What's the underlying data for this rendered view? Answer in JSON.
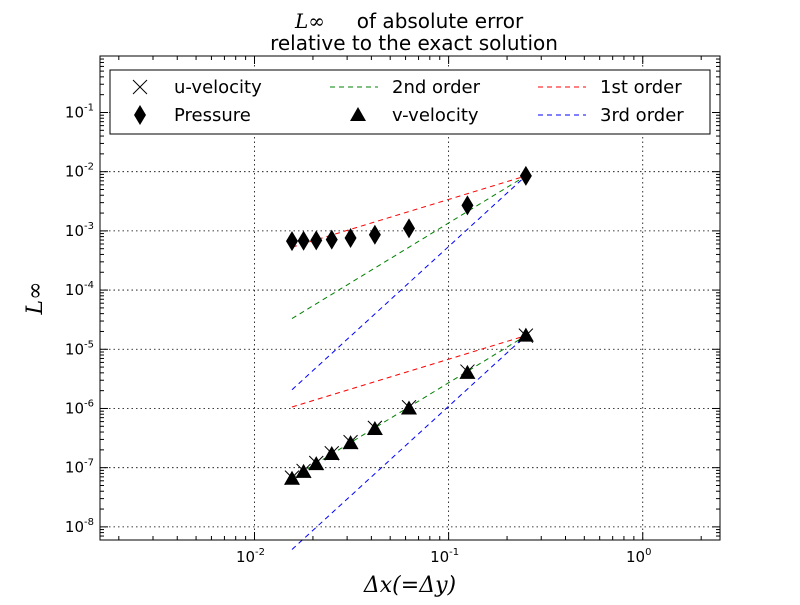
{
  "chart_data": {
    "type": "scatter",
    "title_math": "L∞",
    "title_line1": "of absolute error",
    "title_line2": "relative to the exact solution",
    "xlabel": "Δx(=Δy)",
    "ylabel": "L∞",
    "xscale": "log",
    "yscale": "log",
    "xlim": [
      0.0016,
      2.5
    ],
    "ylim": [
      6e-09,
      0.9
    ],
    "grid": true,
    "legend_position": "top",
    "xticks": [
      {
        "base": "10",
        "exp": "-2",
        "value": 0.01
      },
      {
        "base": "10",
        "exp": "-1",
        "value": 0.1
      },
      {
        "base": "10",
        "exp": "0",
        "value": 1
      }
    ],
    "yticks": [
      {
        "base": "10",
        "exp": "-8",
        "value": 1e-08
      },
      {
        "base": "10",
        "exp": "-7",
        "value": 1e-07
      },
      {
        "base": "10",
        "exp": "-6",
        "value": 1e-06
      },
      {
        "base": "10",
        "exp": "-5",
        "value": 1e-05
      },
      {
        "base": "10",
        "exp": "-4",
        "value": 0.0001
      },
      {
        "base": "10",
        "exp": "-3",
        "value": 0.001
      },
      {
        "base": "10",
        "exp": "-2",
        "value": 0.01
      },
      {
        "base": "10",
        "exp": "-1",
        "value": 0.1
      }
    ],
    "series": [
      {
        "name": "u-velocity",
        "marker": "x",
        "color": "#000000",
        "x": [
          0.25,
          0.125,
          0.0625,
          0.0417,
          0.03125,
          0.025,
          0.0208,
          0.0179,
          0.0156
        ],
        "y": [
          1.7e-05,
          4.2e-06,
          1.05e-06,
          4.7e-07,
          2.7e-07,
          1.75e-07,
          1.2e-07,
          8.8e-08,
          6.8e-08
        ]
      },
      {
        "name": "v-velocity",
        "marker": "triangle",
        "color": "#000000",
        "x": [
          0.25,
          0.125,
          0.0625,
          0.0417,
          0.03125,
          0.025,
          0.0208,
          0.0179,
          0.0156
        ],
        "y": [
          1.7e-05,
          4e-06,
          1e-06,
          4.5e-07,
          2.6e-07,
          1.7e-07,
          1.15e-07,
          8.5e-08,
          6.5e-08
        ]
      },
      {
        "name": "Pressure",
        "marker": "diamond",
        "color": "#000000",
        "x": [
          0.25,
          0.125,
          0.0625,
          0.0417,
          0.03125,
          0.025,
          0.0208,
          0.0179,
          0.0156
        ],
        "y": [
          0.0085,
          0.0027,
          0.0011,
          0.00086,
          0.00076,
          0.00071,
          0.00069,
          0.00068,
          0.00067
        ]
      },
      {
        "name": "1st order",
        "marker": "dashed-line",
        "color": "#ff0000",
        "segments": [
          {
            "x": [
              0.0156,
              0.25
            ],
            "y": [
              0.00053,
              0.0085
            ]
          },
          {
            "x": [
              0.0156,
              0.25
            ],
            "y": [
              1.06e-06,
              1.7e-05
            ]
          }
        ]
      },
      {
        "name": "2nd order",
        "marker": "dashed-line",
        "color": "#008000",
        "segments": [
          {
            "x": [
              0.0156,
              0.25
            ],
            "y": [
              3.3e-05,
              0.0085
            ]
          },
          {
            "x": [
              0.0156,
              0.25
            ],
            "y": [
              6.6e-08,
              1.7e-05
            ]
          }
        ]
      },
      {
        "name": "3rd order",
        "marker": "dashed-line",
        "color": "#0000ff",
        "segments": [
          {
            "x": [
              0.0156,
              0.25
            ],
            "y": [
              2.07e-06,
              0.0085
            ]
          },
          {
            "x": [
              0.0156,
              0.25
            ],
            "y": [
              4.15e-09,
              1.7e-05
            ]
          }
        ]
      }
    ],
    "legend_order": [
      0,
      2,
      4,
      1,
      3,
      5
    ]
  }
}
